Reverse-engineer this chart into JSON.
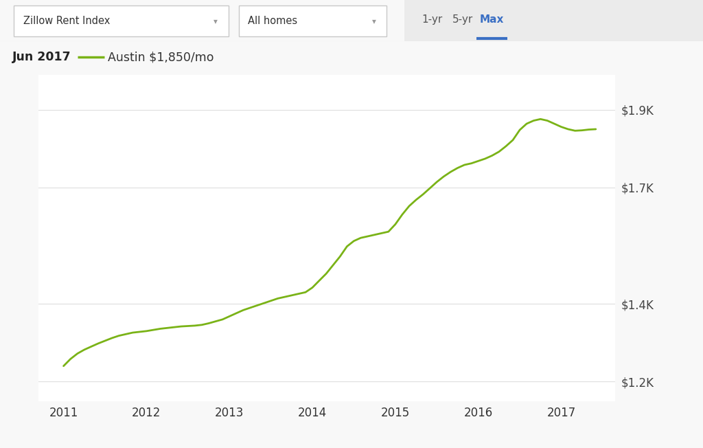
{
  "background_color": "#f8f8f8",
  "chart_bg_color": "#ffffff",
  "line_color": "#7ab317",
  "line_width": 2.0,
  "header_bg_color": "#ebebeb",
  "grid_color": "#e0e0e0",
  "ylabel_color": "#444444",
  "xlabel_color": "#333333",
  "legend_date": "Jun 2017",
  "legend_label": "Austin $1,850/mo",
  "header_label1": "Zillow Rent Index",
  "header_label2": "All homes",
  "header_tab1": "1-yr",
  "header_tab2": "5-yr",
  "header_tab3": "Max",
  "active_tab_color": "#3a6fc4",
  "inactive_tab_color": "#555555",
  "ytick_labels": [
    "$1.2K",
    "$1.4K",
    "$1.7K",
    "$1.9K"
  ],
  "ytick_values": [
    1200,
    1400,
    1700,
    1900
  ],
  "xtick_labels": [
    "2011",
    "2012",
    "2013",
    "2014",
    "2015",
    "2016",
    "2017"
  ],
  "xtick_values": [
    2011,
    2012,
    2013,
    2014,
    2015,
    2016,
    2017
  ],
  "xlim": [
    2010.7,
    2017.65
  ],
  "ylim": [
    1150,
    1990
  ],
  "x_data": [
    2011.0,
    2011.083,
    2011.167,
    2011.25,
    2011.333,
    2011.417,
    2011.5,
    2011.583,
    2011.667,
    2011.75,
    2011.833,
    2011.917,
    2012.0,
    2012.083,
    2012.167,
    2012.25,
    2012.333,
    2012.417,
    2012.5,
    2012.583,
    2012.667,
    2012.75,
    2012.833,
    2012.917,
    2013.0,
    2013.083,
    2013.167,
    2013.25,
    2013.333,
    2013.417,
    2013.5,
    2013.583,
    2013.667,
    2013.75,
    2013.833,
    2013.917,
    2014.0,
    2014.083,
    2014.167,
    2014.25,
    2014.333,
    2014.417,
    2014.5,
    2014.583,
    2014.667,
    2014.75,
    2014.833,
    2014.917,
    2015.0,
    2015.083,
    2015.167,
    2015.25,
    2015.333,
    2015.417,
    2015.5,
    2015.583,
    2015.667,
    2015.75,
    2015.833,
    2015.917,
    2016.0,
    2016.083,
    2016.167,
    2016.25,
    2016.333,
    2016.417,
    2016.5,
    2016.583,
    2016.667,
    2016.75,
    2016.833,
    2016.917,
    2017.0,
    2017.083,
    2017.167,
    2017.25,
    2017.333,
    2017.417
  ],
  "y_data": [
    1240,
    1258,
    1272,
    1282,
    1290,
    1298,
    1305,
    1312,
    1318,
    1322,
    1326,
    1328,
    1330,
    1333,
    1336,
    1338,
    1340,
    1342,
    1343,
    1344,
    1346,
    1350,
    1355,
    1360,
    1368,
    1376,
    1384,
    1390,
    1396,
    1402,
    1408,
    1414,
    1418,
    1422,
    1426,
    1430,
    1442,
    1460,
    1478,
    1500,
    1522,
    1548,
    1562,
    1570,
    1574,
    1578,
    1582,
    1586,
    1605,
    1630,
    1652,
    1668,
    1682,
    1698,
    1714,
    1728,
    1740,
    1750,
    1758,
    1762,
    1768,
    1774,
    1782,
    1792,
    1806,
    1822,
    1848,
    1864,
    1872,
    1876,
    1872,
    1864,
    1856,
    1850,
    1846,
    1847,
    1849,
    1850
  ]
}
